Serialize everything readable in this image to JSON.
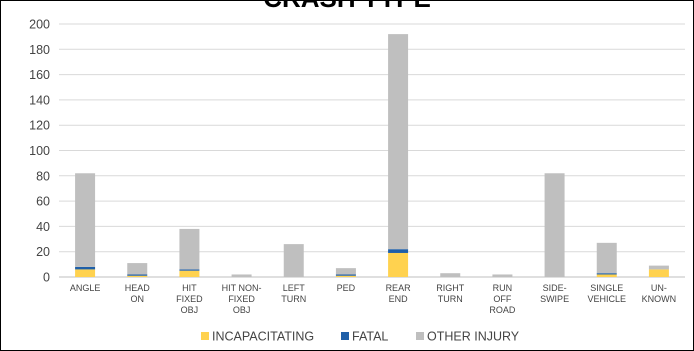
{
  "chart_data": {
    "type": "bar",
    "stacked": true,
    "title": "CRASH TYPE",
    "xlabel": "",
    "ylabel": "",
    "ylim": [
      0,
      200
    ],
    "yticks": [
      0,
      20,
      40,
      60,
      80,
      100,
      120,
      140,
      160,
      180,
      200
    ],
    "grid": true,
    "legend_position": "bottom",
    "categories": [
      "ANGLE",
      "HEAD ON",
      "HIT FIXED OBJ",
      "HIT NON-FIXED OBJ",
      "LEFT TURN",
      "PED",
      "REAR END",
      "RIGHT TURN",
      "RUN OFF ROAD",
      "SIDE-SWIPE",
      "SINGLE VEHICLE",
      "UN-KNOWN"
    ],
    "category_lines": [
      [
        "ANGLE"
      ],
      [
        "HEAD",
        "ON"
      ],
      [
        "HIT",
        "FIXED",
        "OBJ"
      ],
      [
        "HIT NON-",
        "FIXED",
        "OBJ"
      ],
      [
        "LEFT",
        "TURN"
      ],
      [
        "PED"
      ],
      [
        "REAR",
        "END"
      ],
      [
        "RIGHT",
        "TURN"
      ],
      [
        "RUN",
        "OFF",
        "ROAD"
      ],
      [
        "SIDE-",
        "SWIPE"
      ],
      [
        "SINGLE",
        "VEHICLE"
      ],
      [
        "UN-",
        "KNOWN"
      ]
    ],
    "series": [
      {
        "name": "INCAPACITATING",
        "color": "#FFD24F",
        "values": [
          6,
          1,
          5,
          0,
          0,
          1,
          19,
          0,
          0,
          0,
          2,
          6
        ]
      },
      {
        "name": "FATAL",
        "color": "#1F5FA8",
        "values": [
          2,
          1,
          1,
          0,
          0,
          1,
          3,
          0,
          0,
          0,
          1,
          0
        ]
      },
      {
        "name": "OTHER INJURY",
        "color": "#BFBFBF",
        "values": [
          74,
          9,
          32,
          2,
          26,
          5,
          170,
          3,
          2,
          82,
          24,
          3
        ]
      }
    ]
  }
}
